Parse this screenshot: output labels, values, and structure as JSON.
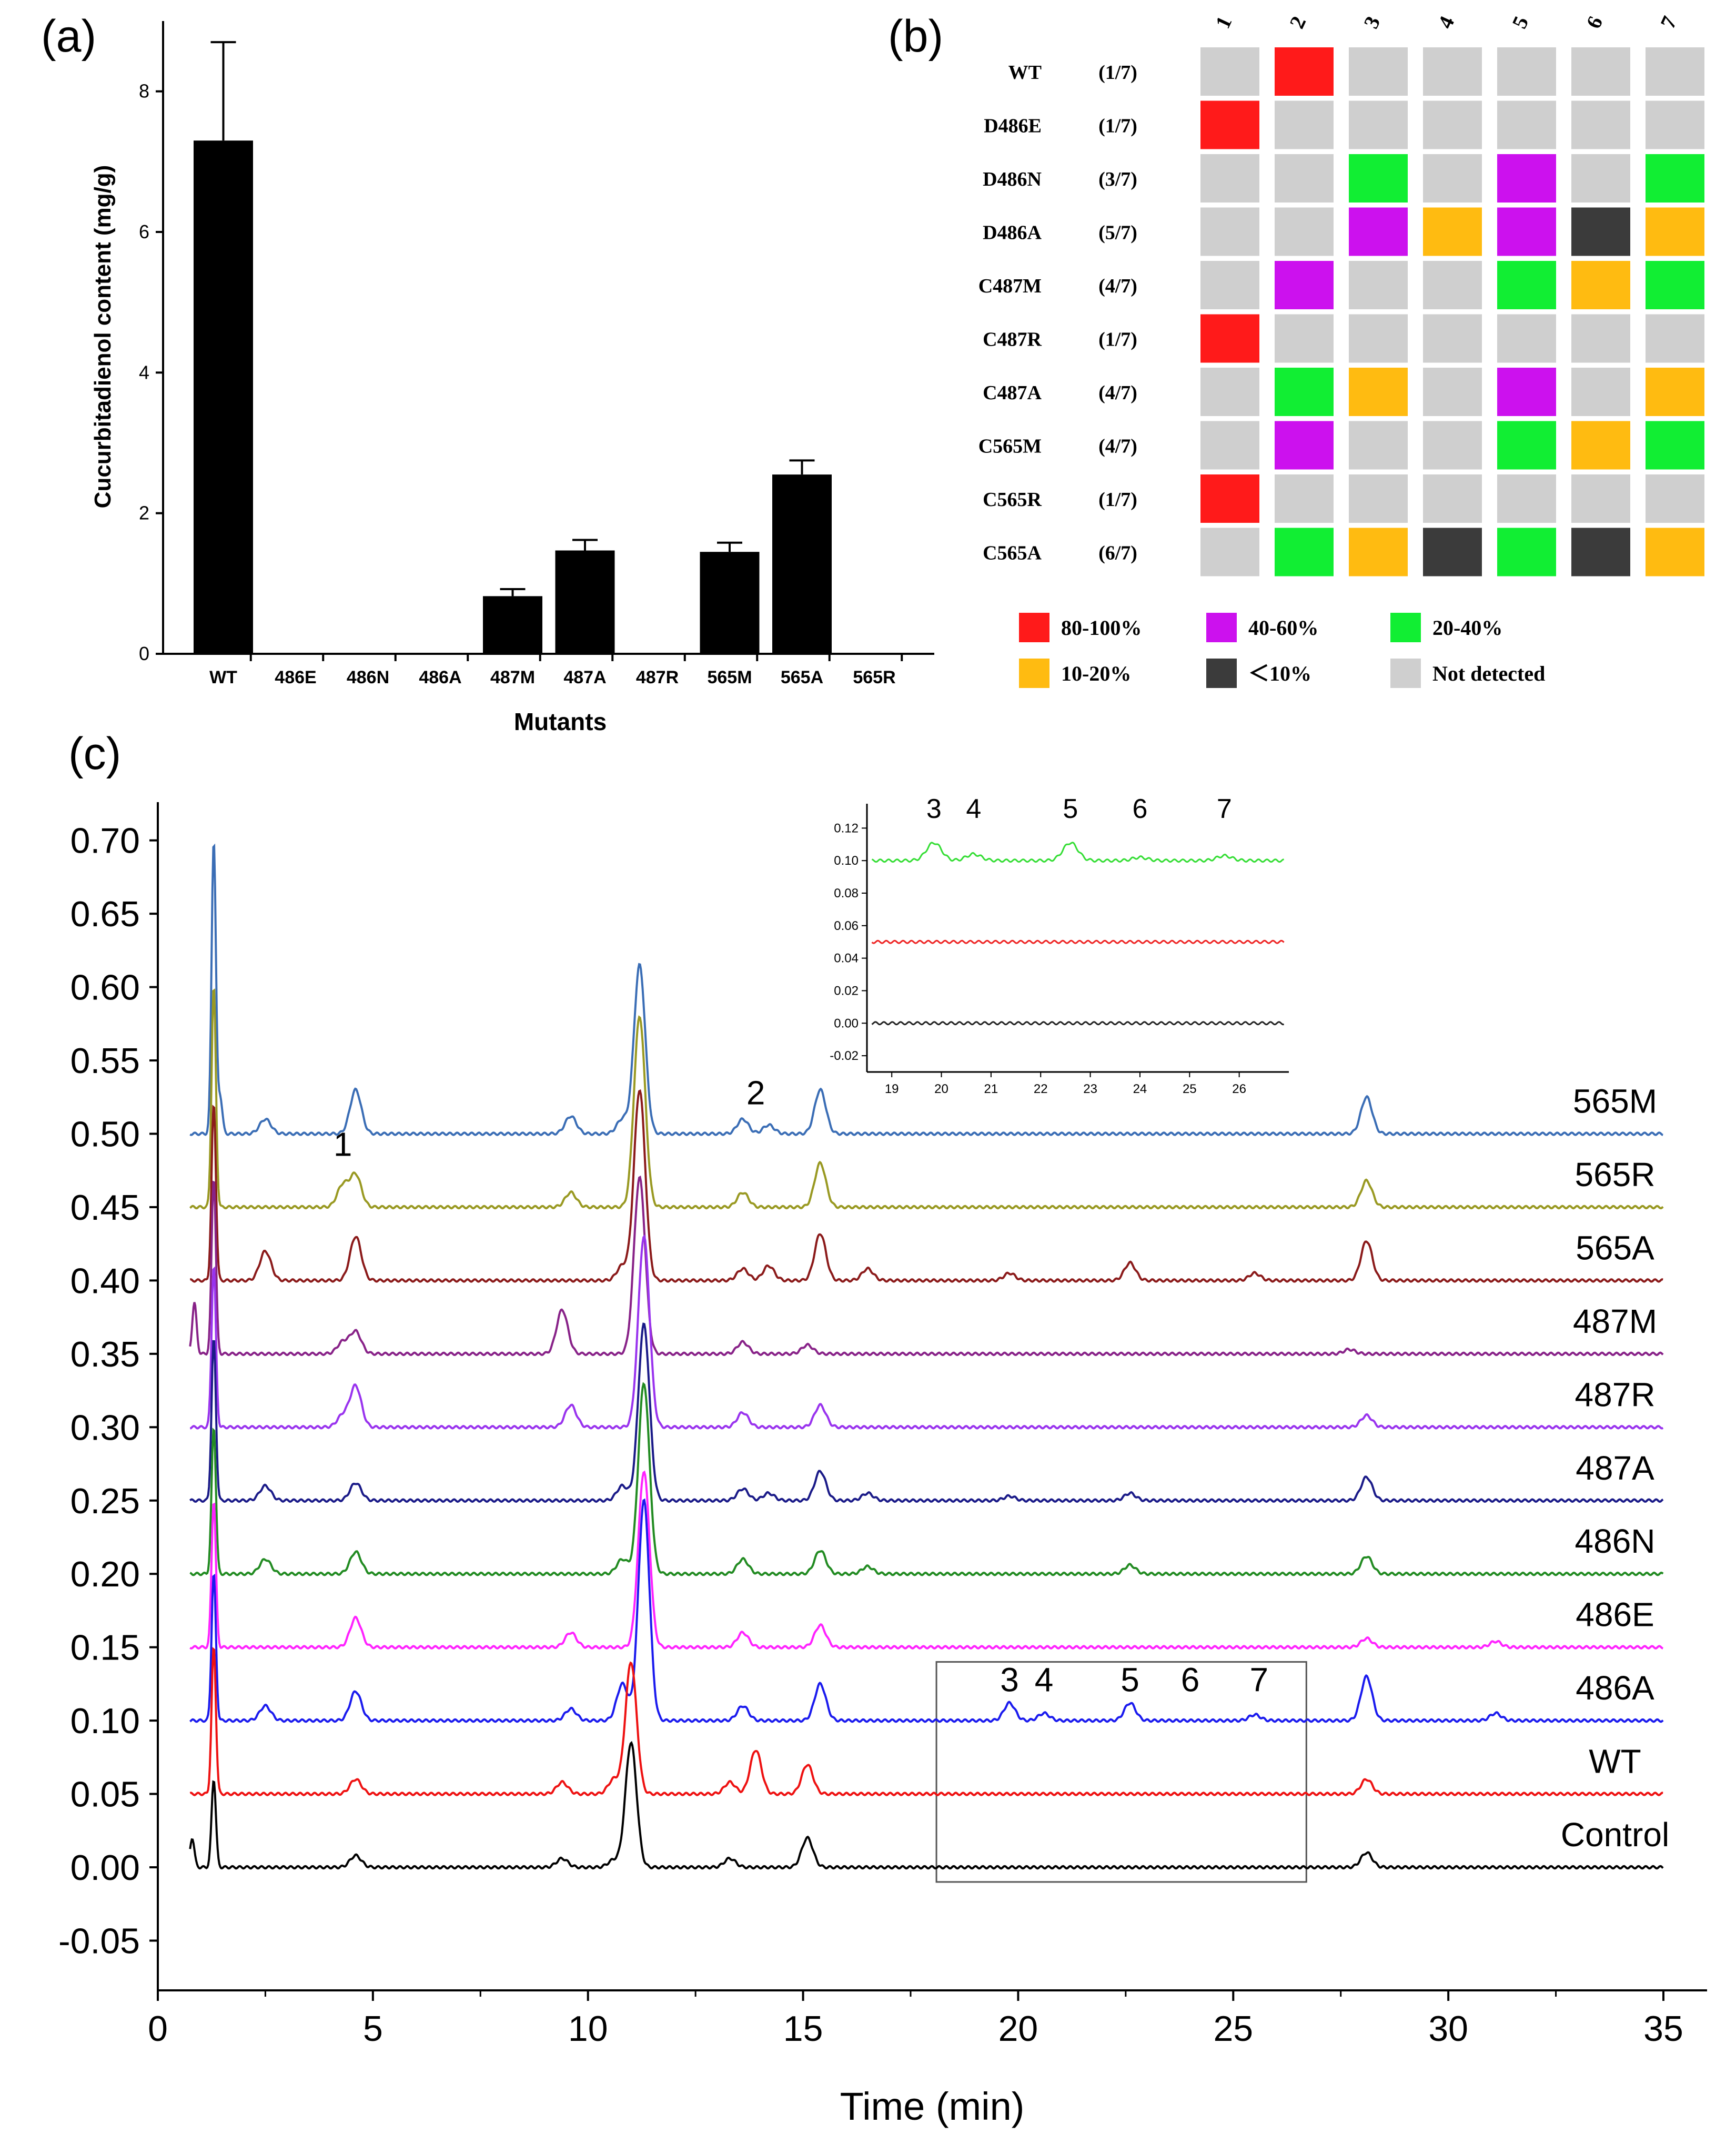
{
  "panel_labels": {
    "a": "(a)",
    "b": "(b)",
    "c": "(c)"
  },
  "chart_data": [
    {
      "id": "a",
      "type": "bar",
      "title": "",
      "xlabel": "Mutants",
      "ylabel": "Cucurbitadienol content (mg/g)",
      "categories": [
        "WT",
        "486E",
        "486N",
        "486A",
        "487M",
        "487A",
        "487R",
        "565M",
        "565A",
        "565R"
      ],
      "values": [
        7.3,
        0,
        0,
        0,
        0.82,
        1.47,
        0,
        1.45,
        2.55,
        0
      ],
      "errors": [
        1.4,
        0,
        0,
        0,
        0.1,
        0.15,
        0,
        0.13,
        0.2,
        0
      ],
      "ylim": [
        0,
        9
      ],
      "yticks": [
        0,
        2,
        4,
        6,
        8
      ],
      "bar_color": "#000000"
    },
    {
      "id": "b",
      "type": "heatmap",
      "columns": [
        "1",
        "2",
        "3",
        "4",
        "5",
        "6",
        "7"
      ],
      "rows": [
        {
          "name": "WT",
          "frac": "(1/7)",
          "cells": [
            "nd",
            "r",
            "nd",
            "nd",
            "nd",
            "nd",
            "nd"
          ]
        },
        {
          "name": "D486E",
          "frac": "(1/7)",
          "cells": [
            "r",
            "nd",
            "nd",
            "nd",
            "nd",
            "nd",
            "nd"
          ]
        },
        {
          "name": "D486N",
          "frac": "(3/7)",
          "cells": [
            "nd",
            "nd",
            "g",
            "nd",
            "p",
            "nd",
            "g"
          ]
        },
        {
          "name": "D486A",
          "frac": "(5/7)",
          "cells": [
            "nd",
            "nd",
            "p",
            "o",
            "p",
            "k",
            "o"
          ]
        },
        {
          "name": "C487M",
          "frac": "(4/7)",
          "cells": [
            "nd",
            "p",
            "nd",
            "nd",
            "g",
            "o",
            "g"
          ]
        },
        {
          "name": "C487R",
          "frac": "(1/7)",
          "cells": [
            "r",
            "nd",
            "nd",
            "nd",
            "nd",
            "nd",
            "nd"
          ]
        },
        {
          "name": "C487A",
          "frac": "(4/7)",
          "cells": [
            "nd",
            "g",
            "o",
            "nd",
            "p",
            "nd",
            "o"
          ]
        },
        {
          "name": "C565M",
          "frac": "(4/7)",
          "cells": [
            "nd",
            "p",
            "nd",
            "nd",
            "g",
            "o",
            "g"
          ]
        },
        {
          "name": "C565R",
          "frac": "(1/7)",
          "cells": [
            "r",
            "nd",
            "nd",
            "nd",
            "nd",
            "nd",
            "nd"
          ]
        },
        {
          "name": "C565A",
          "frac": "(6/7)",
          "cells": [
            "nd",
            "g",
            "o",
            "k",
            "g",
            "k",
            "o"
          ]
        }
      ],
      "legend": [
        {
          "key": "r",
          "label": "80-100%",
          "color": "#ff1a1a"
        },
        {
          "key": "p",
          "label": "40-60%",
          "color": "#cc11ee"
        },
        {
          "key": "g",
          "label": "20-40%",
          "color": "#11ee33"
        },
        {
          "key": "o",
          "label": "10-20%",
          "color": "#ffbb11"
        },
        {
          "key": "k",
          "label": "＜10%",
          "color": "#3b3b3b"
        },
        {
          "key": "nd",
          "label": "Not detected",
          "color": "#cfcfcf"
        }
      ]
    },
    {
      "id": "c",
      "type": "line",
      "xlabel": "Time (min)",
      "ylabel": "",
      "xlim": [
        0,
        35
      ],
      "ylim": [
        -0.08,
        0.72
      ],
      "xticks": [
        0,
        5,
        10,
        15,
        20,
        25,
        30,
        35
      ],
      "yticks": [
        "0.70",
        "0.65",
        "0.60",
        "0.55",
        "0.50",
        "0.45",
        "0.40",
        "0.35",
        "0.30",
        "0.25",
        "0.20",
        "0.15",
        "0.10",
        "0.05",
        "0.00",
        "-0.05"
      ],
      "series": [
        {
          "name": "565M",
          "baseline": 0.5,
          "color": "#3a6db5",
          "peaks": [
            [
              1.3,
              0.2
            ],
            [
              1.45,
              0.025
            ],
            [
              2.5,
              0.01
            ],
            [
              4.6,
              0.03
            ],
            [
              9.6,
              0.012
            ],
            [
              10.8,
              0.01
            ],
            [
              11.2,
              0.115
            ],
            [
              13.6,
              0.01
            ],
            [
              14.2,
              0.006
            ],
            [
              15.4,
              0.03
            ],
            [
              28.1,
              0.025
            ]
          ]
        },
        {
          "name": "565R",
          "baseline": 0.45,
          "color": "#999922",
          "peaks": [
            [
              1.3,
              0.15
            ],
            [
              4.3,
              0.015
            ],
            [
              4.6,
              0.022
            ],
            [
              9.6,
              0.01
            ],
            [
              11.2,
              0.13
            ],
            [
              13.6,
              0.01
            ],
            [
              15.4,
              0.03
            ],
            [
              28.1,
              0.018
            ]
          ]
        },
        {
          "name": "565A",
          "baseline": 0.4,
          "color": "#8b1a1a",
          "peaks": [
            [
              1.3,
              0.12
            ],
            [
              2.5,
              0.02
            ],
            [
              4.6,
              0.03
            ],
            [
              10.8,
              0.01
            ],
            [
              11.2,
              0.13
            ],
            [
              13.6,
              0.008
            ],
            [
              14.2,
              0.01
            ],
            [
              15.4,
              0.032
            ],
            [
              16.5,
              0.008
            ],
            [
              19.8,
              0.005
            ],
            [
              22.6,
              0.012
            ],
            [
              25.5,
              0.005
            ],
            [
              28.1,
              0.027
            ]
          ]
        },
        {
          "name": "487M",
          "baseline": 0.35,
          "color": "#882288",
          "peaks": [
            [
              0.85,
              0.035
            ],
            [
              1.3,
              0.12
            ],
            [
              4.3,
              0.008
            ],
            [
              4.6,
              0.015
            ],
            [
              9.4,
              0.03
            ],
            [
              11.2,
              0.12
            ],
            [
              13.6,
              0.008
            ],
            [
              15.1,
              0.006
            ],
            [
              27.7,
              0.003
            ]
          ]
        },
        {
          "name": "487R",
          "baseline": 0.3,
          "color": "#9933ee",
          "peaks": [
            [
              1.3,
              0.11
            ],
            [
              4.3,
              0.008
            ],
            [
              4.6,
              0.028
            ],
            [
              9.6,
              0.015
            ],
            [
              11.3,
              0.13
            ],
            [
              13.6,
              0.01
            ],
            [
              15.4,
              0.015
            ],
            [
              28.1,
              0.008
            ]
          ]
        },
        {
          "name": "487A",
          "baseline": 0.25,
          "color": "#1a1a88",
          "peaks": [
            [
              1.3,
              0.11
            ],
            [
              2.5,
              0.01
            ],
            [
              4.6,
              0.012
            ],
            [
              10.8,
              0.01
            ],
            [
              11.3,
              0.12
            ],
            [
              13.6,
              0.008
            ],
            [
              14.2,
              0.005
            ],
            [
              15.4,
              0.02
            ],
            [
              16.5,
              0.005
            ],
            [
              19.8,
              0.003
            ],
            [
              22.6,
              0.005
            ],
            [
              28.1,
              0.016
            ]
          ]
        },
        {
          "name": "486N",
          "baseline": 0.2,
          "color": "#228b22",
          "peaks": [
            [
              1.3,
              0.1
            ],
            [
              2.5,
              0.01
            ],
            [
              4.6,
              0.015
            ],
            [
              10.8,
              0.01
            ],
            [
              11.3,
              0.13
            ],
            [
              13.6,
              0.01
            ],
            [
              15.4,
              0.016
            ],
            [
              16.5,
              0.005
            ],
            [
              22.6,
              0.006
            ],
            [
              28.1,
              0.012
            ]
          ]
        },
        {
          "name": "486E",
          "baseline": 0.15,
          "color": "#ff22ff",
          "peaks": [
            [
              1.3,
              0.1
            ],
            [
              4.6,
              0.02
            ],
            [
              9.6,
              0.01
            ],
            [
              11.3,
              0.12
            ],
            [
              13.6,
              0.01
            ],
            [
              15.4,
              0.015
            ],
            [
              28.1,
              0.006
            ],
            [
              31.1,
              0.004
            ]
          ]
        },
        {
          "name": "486A",
          "baseline": 0.1,
          "color": "#1a1aee",
          "peaks": [
            [
              1.3,
              0.1
            ],
            [
              2.5,
              0.01
            ],
            [
              4.6,
              0.02
            ],
            [
              9.6,
              0.008
            ],
            [
              10.8,
              0.025
            ],
            [
              11.3,
              0.15
            ],
            [
              13.6,
              0.01
            ],
            [
              15.4,
              0.025
            ],
            [
              19.8,
              0.012
            ],
            [
              20.6,
              0.005
            ],
            [
              22.6,
              0.012
            ],
            [
              25.5,
              0.004
            ],
            [
              28.1,
              0.03
            ],
            [
              31.1,
              0.005
            ]
          ]
        },
        {
          "name": "WT",
          "baseline": 0.05,
          "color": "#ee1111",
          "peaks": [
            [
              1.3,
              0.1
            ],
            [
              4.6,
              0.01
            ],
            [
              9.4,
              0.008
            ],
            [
              10.6,
              0.01
            ],
            [
              11.0,
              0.09
            ],
            [
              13.3,
              0.008
            ],
            [
              13.9,
              0.03
            ],
            [
              15.1,
              0.02
            ],
            [
              28.1,
              0.01
            ]
          ]
        },
        {
          "name": "Control",
          "baseline": 0.0,
          "color": "#000000",
          "peaks": [
            [
              0.8,
              0.02
            ],
            [
              1.3,
              0.06
            ],
            [
              4.6,
              0.008
            ],
            [
              9.4,
              0.006
            ],
            [
              10.6,
              0.005
            ],
            [
              11.0,
              0.085
            ],
            [
              13.3,
              0.006
            ],
            [
              15.1,
              0.02
            ],
            [
              28.1,
              0.01
            ]
          ]
        }
      ],
      "peak_labels": [
        {
          "label": "1",
          "x": 4.3,
          "y": 0.485
        },
        {
          "label": "2",
          "x": 13.9,
          "y": 0.52
        },
        {
          "label": "3",
          "x": 19.8,
          "y": 0.12
        },
        {
          "label": "4",
          "x": 20.6,
          "y": 0.12
        },
        {
          "label": "5",
          "x": 22.6,
          "y": 0.12
        },
        {
          "label": "6",
          "x": 24.0,
          "y": 0.12
        },
        {
          "label": "7",
          "x": 25.6,
          "y": 0.12
        }
      ],
      "zoom_box": {
        "xlim": [
          18.1,
          26.7
        ],
        "ylim": [
          -0.01,
          0.14
        ]
      },
      "inset": {
        "xlim": [
          18.5,
          27
        ],
        "ylim": [
          -0.03,
          0.135
        ],
        "xticks": [
          "19",
          "20",
          "21",
          "22",
          "23",
          "24",
          "25",
          "26"
        ],
        "yticks": [
          "0.12",
          "0.10",
          "0.08",
          "0.06",
          "0.04",
          "0.02",
          "0.00",
          "-0.02"
        ],
        "series": [
          {
            "color": "#33dd33",
            "baseline": 0.1,
            "peaks": [
              [
                19.85,
                0.011
              ],
              [
                20.65,
                0.004
              ],
              [
                22.6,
                0.011
              ],
              [
                24.0,
                0.002
              ],
              [
                25.7,
                0.003
              ]
            ]
          },
          {
            "color": "#ee2222",
            "baseline": 0.05,
            "peaks": []
          },
          {
            "color": "#222222",
            "baseline": 0.0,
            "peaks": []
          }
        ],
        "labels": [
          {
            "label": "3",
            "x": 19.85
          },
          {
            "label": "4",
            "x": 20.65
          },
          {
            "label": "5",
            "x": 22.6
          },
          {
            "label": "6",
            "x": 24.0
          },
          {
            "label": "7",
            "x": 25.7
          }
        ]
      }
    }
  ]
}
